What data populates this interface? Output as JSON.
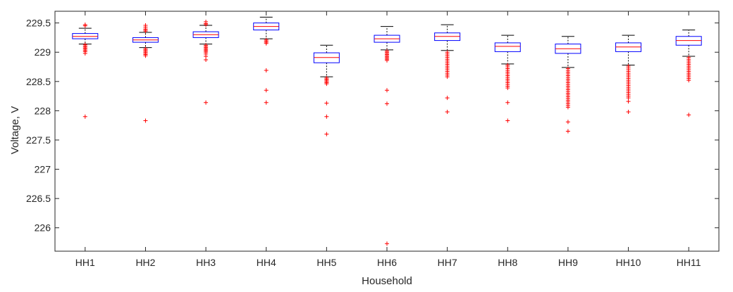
{
  "chart_data": {
    "type": "boxplot",
    "title": "",
    "xlabel": "Household",
    "ylabel": "Voltage, V",
    "ylim": [
      225.6,
      229.7
    ],
    "yticks": [
      226,
      226.5,
      227,
      227.5,
      228,
      228.5,
      229,
      229.5
    ],
    "ytick_labels": [
      "226",
      "226.5",
      "227",
      "227.5",
      "228",
      "228.5",
      "229",
      "229.5"
    ],
    "categories": [
      "HH1",
      "HH2",
      "HH3",
      "HH4",
      "HH5",
      "HH6",
      "HH7",
      "HH8",
      "HH9",
      "HH10",
      "HH11"
    ],
    "boxes": [
      {
        "name": "HH1",
        "whisker_low": 229.14,
        "q1": 229.23,
        "median": 229.27,
        "q3": 229.32,
        "whisker_high": 229.41,
        "outliers": [
          229.47,
          229.45,
          229.13,
          229.11,
          229.09,
          229.07,
          229.05,
          229.03,
          229.01,
          228.98,
          227.9
        ]
      },
      {
        "name": "HH2",
        "whisker_low": 229.08,
        "q1": 229.17,
        "median": 229.21,
        "q3": 229.25,
        "whisker_high": 229.34,
        "outliers": [
          229.46,
          229.43,
          229.4,
          229.38,
          229.36,
          229.06,
          229.04,
          229.02,
          229.0,
          228.98,
          228.96,
          228.94,
          227.83
        ]
      },
      {
        "name": "HH3",
        "whisker_low": 229.14,
        "q1": 229.25,
        "median": 229.3,
        "q3": 229.35,
        "whisker_high": 229.46,
        "outliers": [
          229.52,
          229.49,
          229.47,
          229.12,
          229.1,
          229.08,
          229.06,
          229.04,
          229.02,
          229.0,
          228.97,
          228.93,
          228.87,
          228.14
        ]
      },
      {
        "name": "HH4",
        "whisker_low": 229.23,
        "q1": 229.38,
        "median": 229.44,
        "q3": 229.5,
        "whisker_high": 229.6,
        "outliers": [
          229.21,
          229.19,
          229.17,
          229.15,
          228.69,
          228.35,
          228.14
        ]
      },
      {
        "name": "HH5",
        "whisker_low": 228.58,
        "q1": 228.82,
        "median": 228.91,
        "q3": 228.99,
        "whisker_high": 229.12,
        "outliers": [
          228.56,
          228.54,
          228.52,
          228.5,
          228.48,
          228.46,
          228.13,
          227.9,
          227.6
        ]
      },
      {
        "name": "HH6",
        "whisker_low": 229.04,
        "q1": 229.17,
        "median": 229.23,
        "q3": 229.29,
        "whisker_high": 229.44,
        "outliers": [
          229.02,
          229.0,
          228.98,
          228.96,
          228.94,
          228.92,
          228.9,
          228.88,
          228.86,
          228.35,
          228.12,
          225.73
        ]
      },
      {
        "name": "HH7",
        "whisker_low": 229.03,
        "q1": 229.2,
        "median": 229.27,
        "q3": 229.33,
        "whisker_high": 229.47,
        "outliers": [
          229.0,
          228.97,
          228.94,
          228.91,
          228.88,
          228.85,
          228.82,
          228.79,
          228.76,
          228.73,
          228.7,
          228.67,
          228.64,
          228.61,
          228.58,
          228.22,
          227.98
        ]
      },
      {
        "name": "HH8",
        "whisker_low": 228.8,
        "q1": 229.01,
        "median": 229.1,
        "q3": 229.16,
        "whisker_high": 229.29,
        "outliers": [
          228.78,
          228.75,
          228.72,
          228.69,
          228.66,
          228.63,
          228.6,
          228.57,
          228.54,
          228.51,
          228.48,
          228.45,
          228.42,
          228.39,
          228.14,
          227.83
        ]
      },
      {
        "name": "HH9",
        "whisker_low": 228.74,
        "q1": 228.98,
        "median": 229.06,
        "q3": 229.14,
        "whisker_high": 229.27,
        "outliers": [
          228.72,
          228.69,
          228.66,
          228.63,
          228.6,
          228.57,
          228.54,
          228.51,
          228.48,
          228.45,
          228.42,
          228.39,
          228.36,
          228.33,
          228.3,
          228.27,
          228.24,
          228.21,
          228.18,
          228.15,
          228.12,
          228.09,
          228.06,
          227.81,
          227.65
        ]
      },
      {
        "name": "HH10",
        "whisker_low": 228.78,
        "q1": 229.01,
        "median": 229.09,
        "q3": 229.16,
        "whisker_high": 229.29,
        "outliers": [
          228.76,
          228.73,
          228.7,
          228.67,
          228.64,
          228.61,
          228.58,
          228.55,
          228.52,
          228.49,
          228.46,
          228.43,
          228.4,
          228.37,
          228.34,
          228.31,
          228.28,
          228.25,
          228.22,
          228.16,
          227.98
        ]
      },
      {
        "name": "HH11",
        "whisker_low": 228.93,
        "q1": 229.12,
        "median": 229.2,
        "q3": 229.27,
        "whisker_high": 229.38,
        "outliers": [
          228.91,
          228.88,
          228.85,
          228.82,
          228.79,
          228.76,
          228.73,
          228.7,
          228.67,
          228.64,
          228.61,
          228.58,
          228.55,
          228.52,
          227.93
        ]
      }
    ],
    "colors": {
      "box": "#0000ff",
      "median": "#ff0000",
      "outlier": "#ff0000",
      "whisker": "#000000",
      "axis": "#262626",
      "text": "#262626"
    },
    "grid": false,
    "legend": "none"
  }
}
